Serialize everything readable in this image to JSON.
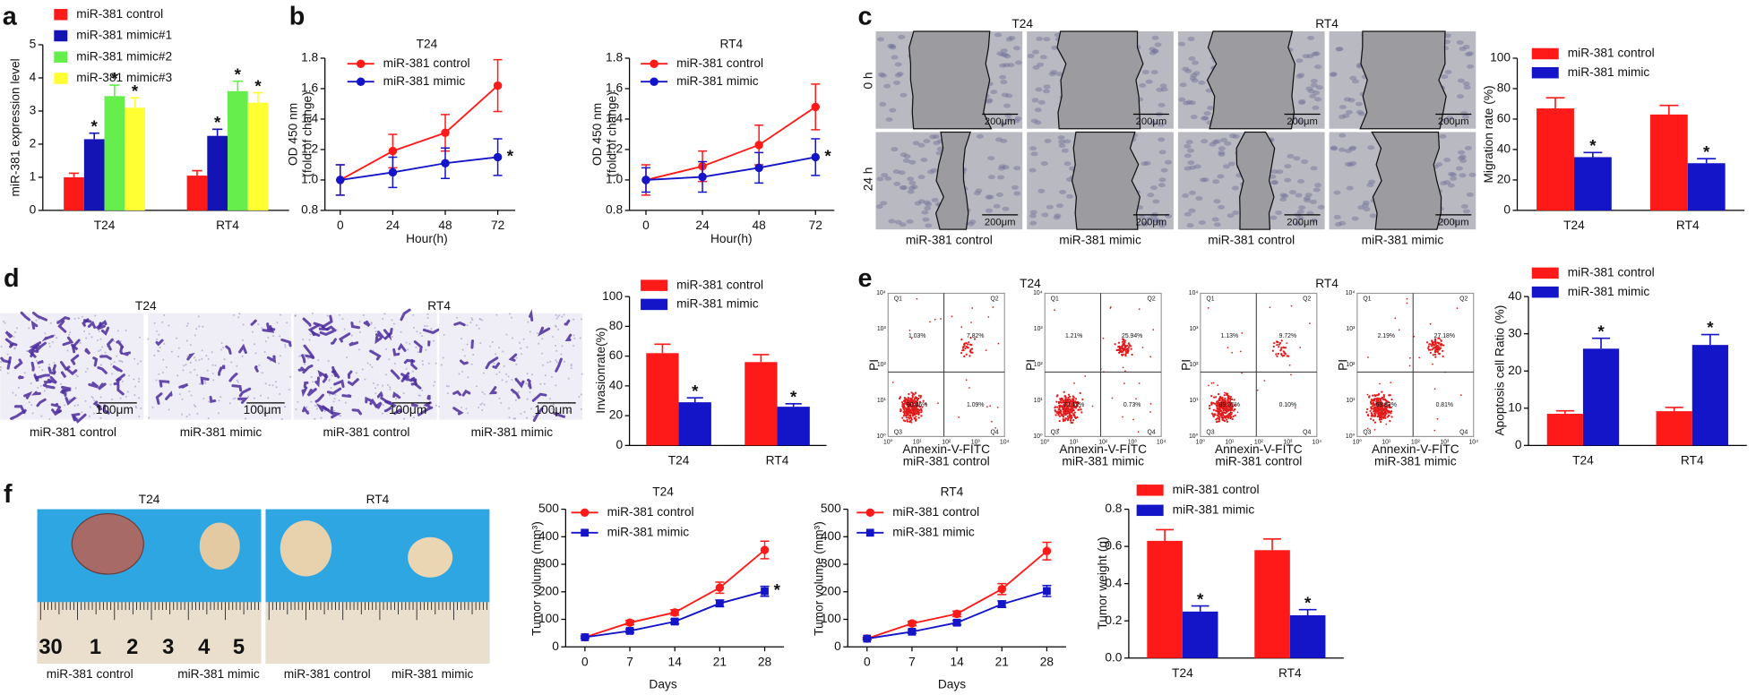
{
  "chart_data": [
    {
      "type": "bar",
      "categories": [
        "T24",
        "RT4"
      ],
      "ylabel": "miR-381 expression level",
      "ylim": [
        0,
        5
      ],
      "yticks": [
        0,
        1,
        2,
        3,
        4,
        5
      ],
      "series": [
        {
          "name": "miR-381 control",
          "color": "#ff1a1a",
          "values": [
            1.0,
            1.05
          ],
          "errors": [
            0.12,
            0.15
          ]
        },
        {
          "name": "miR-381 mimic#1",
          "color": "#1414b4",
          "values": [
            2.15,
            2.25
          ],
          "errors": [
            0.18,
            0.2
          ],
          "significance": [
            "*",
            "*"
          ]
        },
        {
          "name": "miR-381 mimic#2",
          "color": "#66ee4d",
          "values": [
            3.45,
            3.6
          ],
          "errors": [
            0.33,
            0.3
          ],
          "significance": [
            "*",
            "*"
          ]
        },
        {
          "name": "miR-381 mimic#3",
          "color": "#ffff33",
          "values": [
            3.1,
            3.25
          ],
          "errors": [
            0.3,
            0.3
          ],
          "significance": [
            "*",
            "*"
          ]
        }
      ]
    },
    {
      "type": "line",
      "title": "T24",
      "xlabel": "Hour(h)",
      "ylabel": [
        "OD 450 nm",
        "(fold of change)"
      ],
      "x": [
        0,
        24,
        48,
        72
      ],
      "xlim": [
        -7,
        80
      ],
      "xticks": [
        0,
        24,
        48,
        72
      ],
      "ylim": [
        0.8,
        1.8
      ],
      "yticks": [
        0.8,
        {
          "value": 1,
          "label": "1.0"
        },
        1.2,
        1.4,
        1.6,
        1.8
      ],
      "series": [
        {
          "name": "miR-381 control",
          "color": "#ff1a1a",
          "marker": "circle",
          "values": [
            1.0,
            1.19,
            1.31,
            1.62
          ],
          "errors": [
            0.1,
            0.11,
            0.12,
            0.17
          ]
        },
        {
          "name": "miR-381 mimic",
          "color": "#1414c8",
          "marker": "circle",
          "values": [
            1.0,
            1.05,
            1.11,
            1.15
          ],
          "errors": [
            0.1,
            0.1,
            0.1,
            0.12
          ],
          "significance": "*"
        }
      ]
    },
    {
      "type": "line",
      "title": "RT4",
      "xlabel": "Hour(h)",
      "ylabel": [
        "OD 450 nm",
        "(fold of change)"
      ],
      "x": [
        0,
        24,
        48,
        72
      ],
      "xlim": [
        -7,
        80
      ],
      "xticks": [
        0,
        24,
        48,
        72
      ],
      "ylim": [
        0.8,
        1.8
      ],
      "yticks": [
        0.8,
        {
          "value": 1,
          "label": "1.0"
        },
        1.2,
        1.4,
        1.6,
        1.8
      ],
      "series": [
        {
          "name": "miR-381 control",
          "color": "#ff1a1a",
          "marker": "circle",
          "values": [
            1.0,
            1.09,
            1.23,
            1.48
          ],
          "errors": [
            0.1,
            0.1,
            0.13,
            0.15
          ]
        },
        {
          "name": "miR-381 mimic",
          "color": "#1414c8",
          "marker": "circle",
          "values": [
            1.0,
            1.02,
            1.08,
            1.15
          ],
          "errors": [
            0.08,
            0.1,
            0.1,
            0.12
          ],
          "significance": "*"
        }
      ]
    },
    {
      "type": "bar",
      "categories": [
        "T24",
        "RT4"
      ],
      "ylabel": "Migration rate (%)",
      "ylim": [
        0,
        100
      ],
      "yticks": [
        0,
        20,
        40,
        60,
        80,
        100
      ],
      "series": [
        {
          "name": "miR-381 control",
          "color": "#ff1a1a",
          "values": [
            67,
            63
          ],
          "errors": [
            7,
            6
          ]
        },
        {
          "name": "miR-381 mimic",
          "color": "#1414c8",
          "values": [
            35,
            31
          ],
          "errors": [
            3,
            3
          ],
          "significance": [
            "*",
            "*"
          ]
        }
      ]
    },
    {
      "type": "bar",
      "categories": [
        "T24",
        "RT4"
      ],
      "ylabel": "Invasionrate(%)",
      "ylim": [
        0,
        100
      ],
      "yticks": [
        0,
        20,
        40,
        60,
        80,
        100
      ],
      "series": [
        {
          "name": "miR-381 control",
          "color": "#ff1a1a",
          "values": [
            62,
            56
          ],
          "errors": [
            6,
            5
          ]
        },
        {
          "name": "miR-381 mimic",
          "color": "#1414c8",
          "values": [
            29,
            26
          ],
          "errors": [
            3,
            2
          ],
          "significance": [
            "*",
            "*"
          ]
        }
      ]
    },
    {
      "type": "bar",
      "categories": [
        "T24",
        "RT4"
      ],
      "ylabel": "Apoptosis cell Ratio (%)",
      "ylim": [
        0,
        40
      ],
      "yticks": [
        0,
        10,
        20,
        30,
        40
      ],
      "series": [
        {
          "name": "miR-381 control",
          "color": "#ff1a1a",
          "values": [
            8.5,
            9.2
          ],
          "errors": [
            0.8,
            1.0
          ]
        },
        {
          "name": "miR-381 mimic",
          "color": "#1414c8",
          "values": [
            26,
            27
          ],
          "errors": [
            2.8,
            2.8
          ],
          "significance": [
            "*",
            "*"
          ]
        }
      ]
    },
    {
      "type": "line",
      "title": "T24",
      "xlabel": "Days",
      "ylabel": "Tumor volume (mm³)",
      "x": [
        0,
        7,
        14,
        21,
        28
      ],
      "xlim": [
        -3,
        31
      ],
      "xticks": [
        0,
        7,
        14,
        21,
        28
      ],
      "ylim": [
        0,
        500
      ],
      "yticks": [
        0,
        100,
        200,
        300,
        400,
        500
      ],
      "series": [
        {
          "name": "miR-381 control",
          "color": "#ff1a1a",
          "marker": "circle",
          "values": [
            35,
            88,
            125,
            215,
            352
          ],
          "errors": [
            4,
            8,
            10,
            20,
            32
          ]
        },
        {
          "name": "miR-381 mimic",
          "color": "#1414c8",
          "marker": "square",
          "values": [
            35,
            58,
            92,
            158,
            202
          ],
          "errors": [
            4,
            6,
            8,
            12,
            18
          ],
          "significance": "*"
        }
      ]
    },
    {
      "type": "line",
      "title": "RT4",
      "xlabel": "Days",
      "ylabel": "Tumor volume (mm³)",
      "x": [
        0,
        7,
        14,
        21,
        28
      ],
      "xlim": [
        -3,
        31
      ],
      "xticks": [
        0,
        7,
        14,
        21,
        28
      ],
      "ylim": [
        0,
        500
      ],
      "yticks": [
        0,
        100,
        200,
        300,
        400,
        500
      ],
      "series": [
        {
          "name": "miR-381 control",
          "color": "#ff1a1a",
          "marker": "circle",
          "values": [
            30,
            85,
            120,
            210,
            348
          ],
          "errors": [
            4,
            8,
            10,
            20,
            32
          ]
        },
        {
          "name": "miR-381 mimic",
          "color": "#1414c8",
          "marker": "square",
          "values": [
            30,
            55,
            88,
            155,
            203
          ],
          "errors": [
            4,
            6,
            8,
            12,
            20
          ]
        }
      ]
    },
    {
      "type": "bar",
      "categories": [
        "T24",
        "RT4"
      ],
      "ylabel": "Tumor weight (g)",
      "ylim": [
        0,
        0.8
      ],
      "yticks": [
        {
          "value": 0,
          "label": "0.0"
        },
        0.2,
        0.4,
        0.6,
        0.8
      ],
      "series": [
        {
          "name": "miR-381 control",
          "color": "#ff1a1a",
          "values": [
            0.63,
            0.58
          ],
          "errors": [
            0.06,
            0.06
          ]
        },
        {
          "name": "miR-381 mimic",
          "color": "#1414c8",
          "values": [
            0.25,
            0.23
          ],
          "errors": [
            0.03,
            0.03
          ],
          "significance": [
            "*",
            "*"
          ]
        }
      ]
    }
  ],
  "panel_labels": [
    "a",
    "b",
    "c",
    "d",
    "e",
    "f"
  ],
  "wound_healing": {
    "groups": [
      "T24",
      "RT4"
    ],
    "rows": [
      "0 h",
      "24 h"
    ],
    "scale_bar": "200μm",
    "captions": [
      "miR-381 control",
      "miR-381 mimic",
      "miR-381 control",
      "miR-381 mimic"
    ]
  },
  "transwell": {
    "groups": [
      "T24",
      "RT4"
    ],
    "scale_bar": "100μm",
    "captions": [
      "miR-381 control",
      "miR-381 mimic",
      "miR-381 control",
      "miR-381 mimic"
    ]
  },
  "flow_cytometry": {
    "groups": [
      "T24",
      "RT4"
    ],
    "x_label": "Annexin-V-FITC",
    "y_label": "PI",
    "axis_ticks": [
      "10⁰",
      "10¹",
      "10²",
      "10³",
      "10⁴"
    ],
    "quadrant_names": [
      "Q1",
      "Q2",
      "Q3",
      "Q4"
    ],
    "plots": [
      {
        "quadrants": [
          "1.03%",
          "7.82%",
          "90.06%",
          "1.09%"
        ],
        "caption": "miR-381 control"
      },
      {
        "quadrants": [
          "1.21%",
          "25.94%",
          "72.12%",
          "0.73%"
        ],
        "caption": "miR-381 mimic"
      },
      {
        "quadrants": [
          "1.13%",
          "9.72%",
          "89.05%",
          "0.10%"
        ],
        "caption": "miR-381 control"
      },
      {
        "quadrants": [
          "2.19%",
          "27.18%",
          "69.82%",
          "0.81%"
        ],
        "caption": "miR-381 mimic"
      }
    ]
  },
  "tumor_photos": {
    "groups": [
      "T24",
      "RT4"
    ],
    "ruler_labels": [
      "30",
      "1",
      "2",
      "3",
      "4",
      "5"
    ],
    "captions": [
      "miR-381 control",
      "miR-381 mimic",
      "miR-381 control",
      "miR-381 mimic"
    ]
  }
}
